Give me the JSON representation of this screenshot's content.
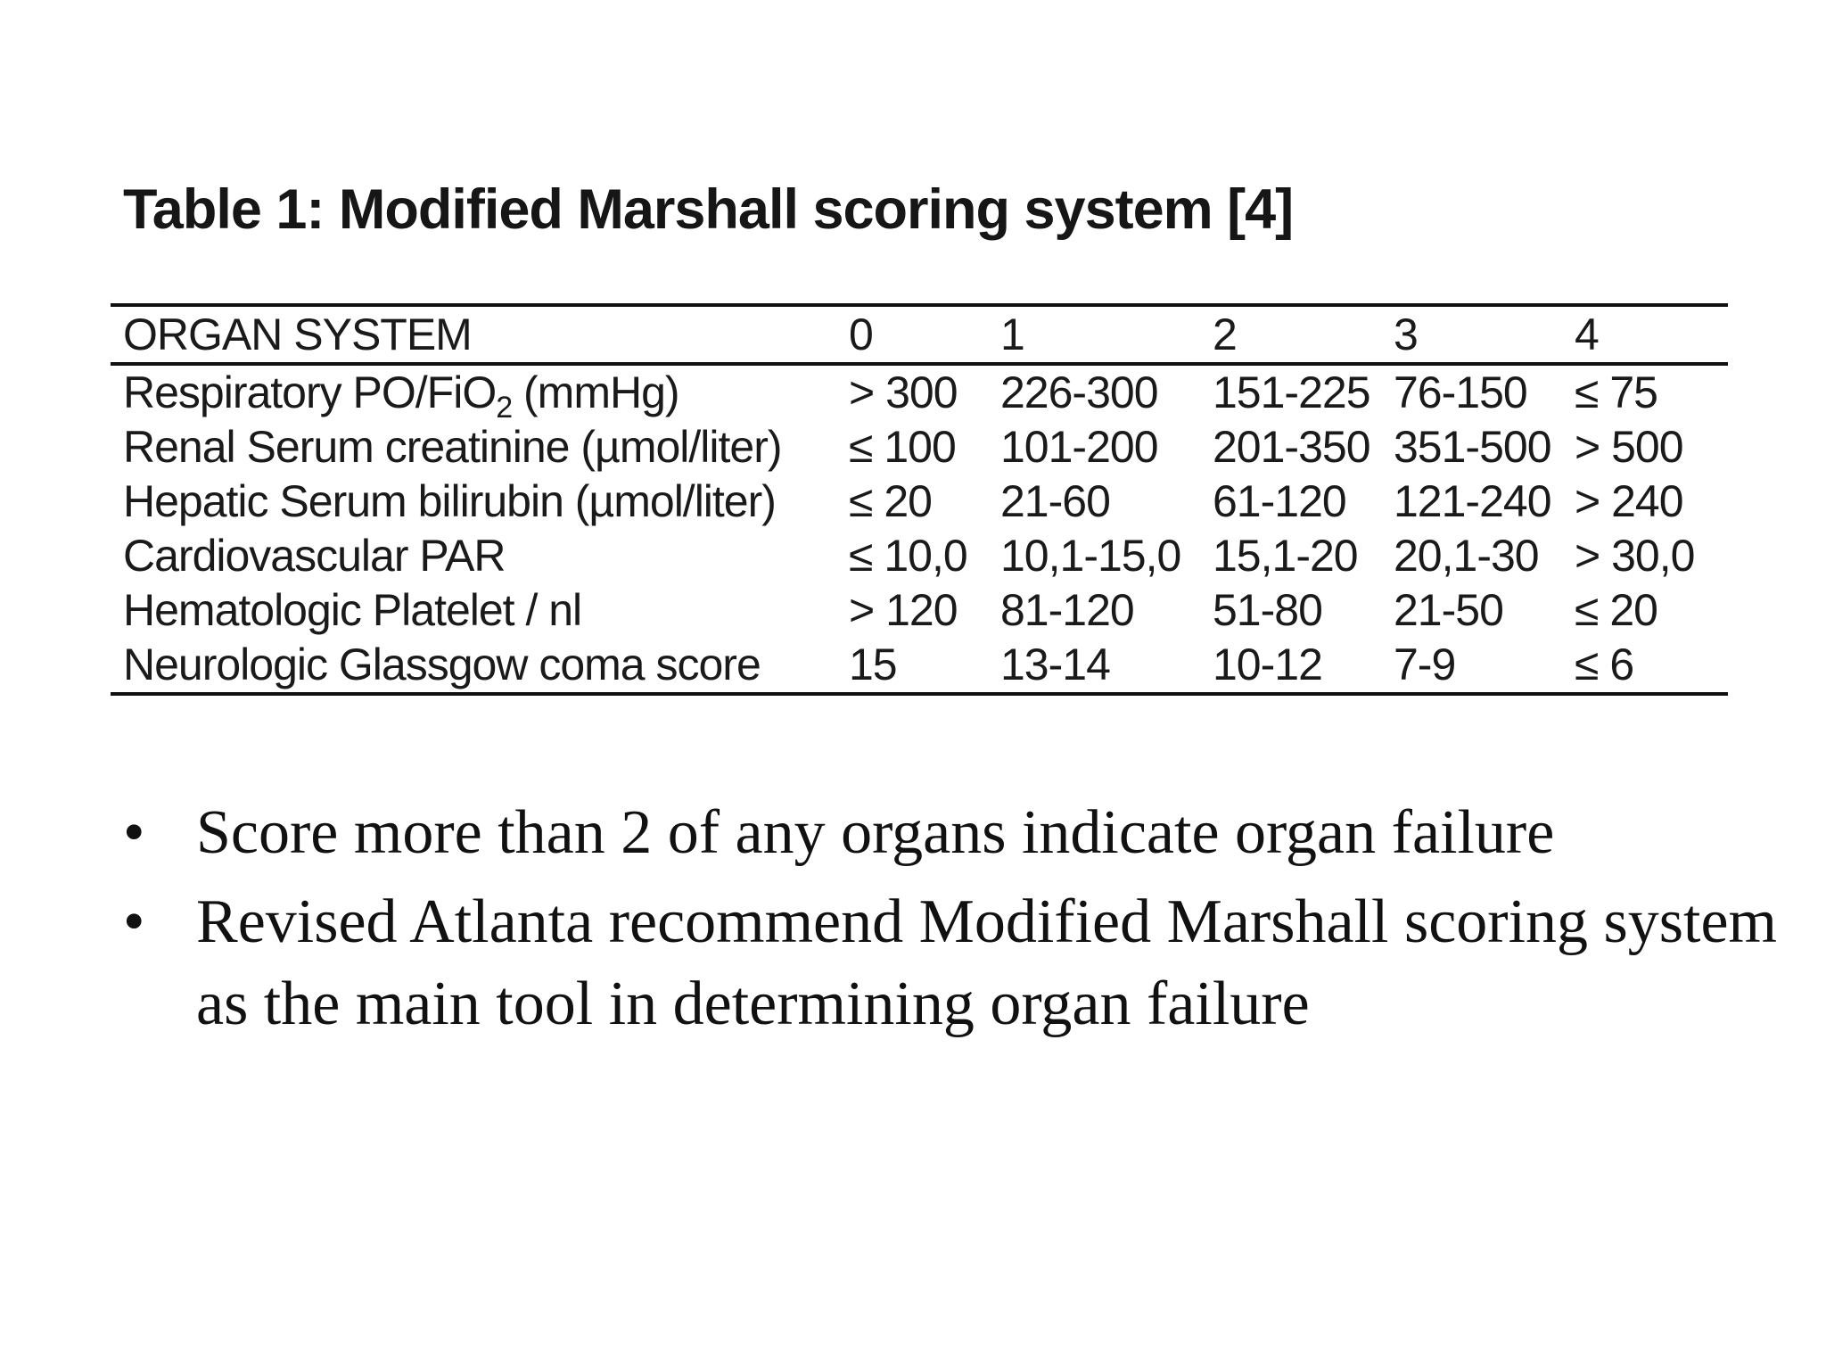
{
  "table": {
    "title": "Table 1: Modified Marshall scoring system [4]",
    "headers": [
      "ORGAN SYSTEM",
      "0",
      "1",
      "2",
      "3",
      "4"
    ],
    "rows": [
      {
        "organ": "Respiratory PO/FiO",
        "organ_sub": "2",
        "organ_suffix": " (mmHg)",
        "values": [
          "> 300",
          "226-300",
          "151-225",
          "76-150",
          "≤ 75"
        ]
      },
      {
        "organ": "Renal Serum creatinine (µmol/liter)",
        "values": [
          "≤ 100",
          "101-200",
          "201-350",
          "351-500",
          "> 500"
        ]
      },
      {
        "organ": "Hepatic Serum bilirubin (µmol/liter)",
        "values": [
          "≤ 20",
          "21-60",
          "61-120",
          "121-240",
          "> 240"
        ]
      },
      {
        "organ": "Cardiovascular PAR",
        "values": [
          "≤ 10,0",
          "10,1-15,0",
          "15,1-20",
          "20,1-30",
          "> 30,0"
        ]
      },
      {
        "organ": "Hematologic Platelet / nl",
        "values": [
          "> 120",
          "81-120",
          "51-80",
          "21-50",
          "≤ 20"
        ]
      },
      {
        "organ": "Neurologic Glassgow coma score",
        "values": [
          "15",
          "13-14",
          "10-12",
          "7-9",
          "≤ 6"
        ]
      }
    ]
  },
  "bullets": {
    "marker": "•",
    "items": [
      "Score more than 2 of any organs indicate organ failure",
      "Revised Atlanta recommend Modified Marshall scoring system as the main tool in determining organ failure"
    ]
  }
}
